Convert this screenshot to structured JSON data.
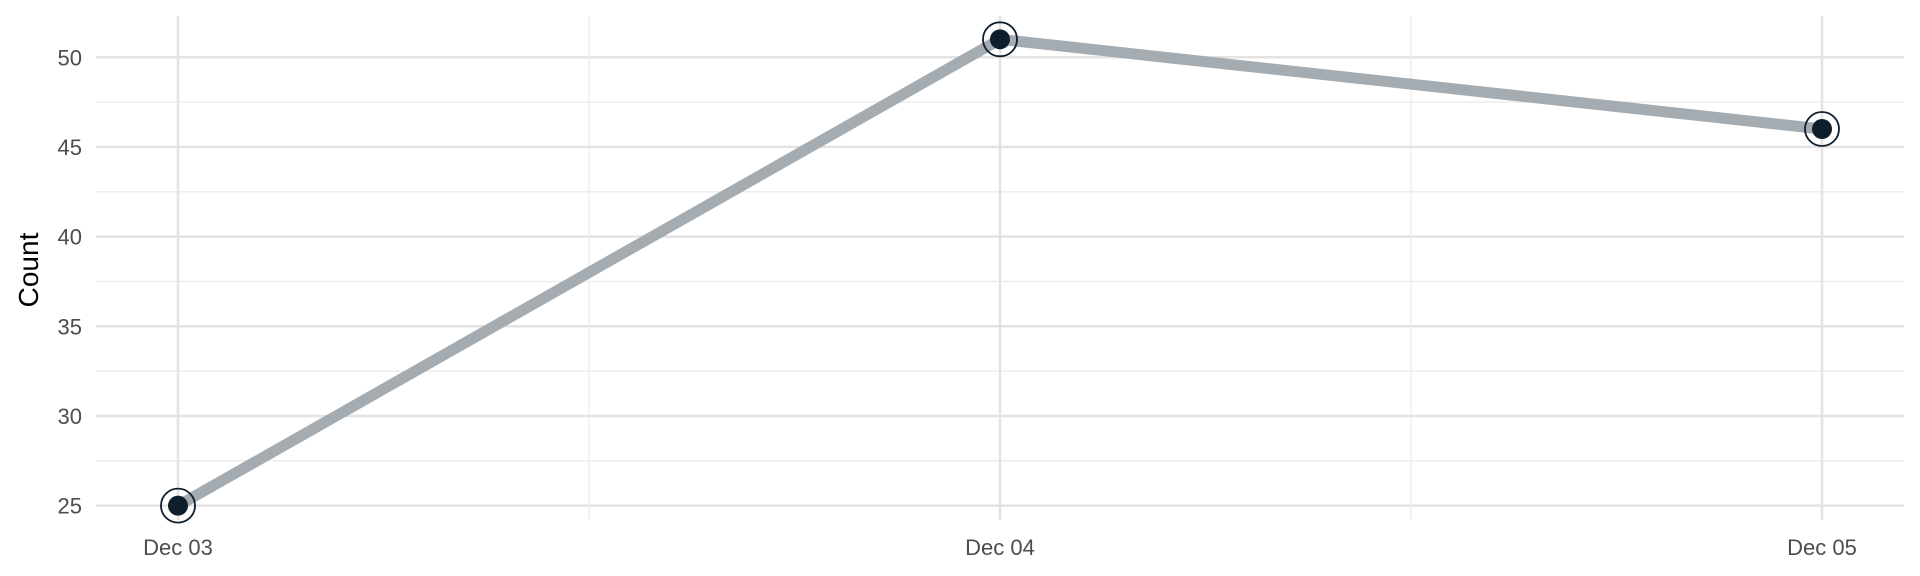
{
  "chart_data": {
    "type": "line",
    "title": "",
    "xlabel": "",
    "ylabel": "Count",
    "x": [
      "Dec 03",
      "Dec 04",
      "Dec 05"
    ],
    "series": [
      {
        "values": [
          25,
          51,
          46
        ]
      }
    ],
    "ylim": [
      24.2,
      52.3
    ],
    "yticks": [
      25,
      30,
      35,
      40,
      45,
      50
    ],
    "grid": true,
    "legend": "none",
    "colors": {
      "line": "#a4abb1",
      "marker": "#0f1e2c",
      "grid_major": "#e3e3e3",
      "grid_minor": "#ededed"
    }
  }
}
